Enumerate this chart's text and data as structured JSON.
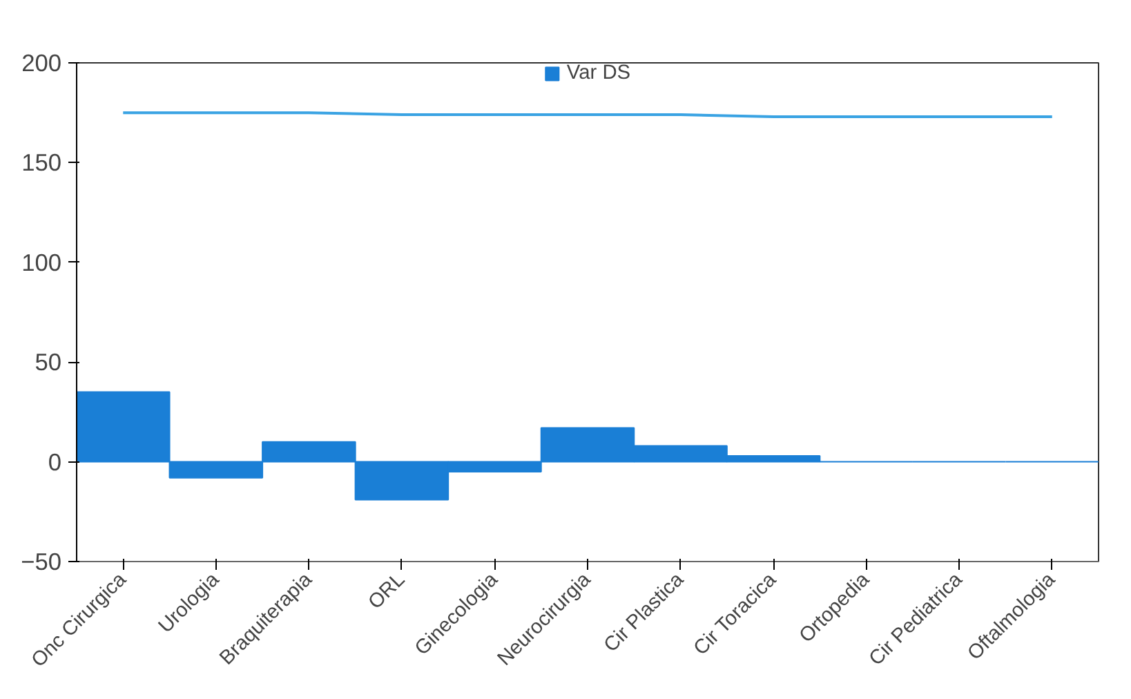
{
  "chart_data": {
    "type": "bar",
    "categories": [
      "Onc Cirurgica",
      "Urologia",
      "Braquiterapia",
      "ORL",
      "Ginecologia",
      "Neurocirurgia",
      "Cir Plastica",
      "Cir Toracica",
      "Ortopedia",
      "Cir Pediatrica",
      "Oftalmologia"
    ],
    "series": [
      {
        "name": "Var DS",
        "color": "#1a7fd6",
        "values": [
          35,
          -8,
          10,
          -19,
          -5,
          17,
          8,
          3,
          0,
          0,
          0
        ]
      },
      {
        "type": "line",
        "color": "#3aa3e3",
        "values": [
          175,
          175,
          175,
          174,
          174,
          174,
          174,
          173,
          173,
          173,
          173
        ]
      }
    ],
    "ylim": [
      -50,
      200
    ],
    "yticks": [
      -50,
      0,
      50,
      100,
      150,
      200
    ],
    "grid": false,
    "legend": "top",
    "marker": "none",
    "line_style": "solid"
  }
}
